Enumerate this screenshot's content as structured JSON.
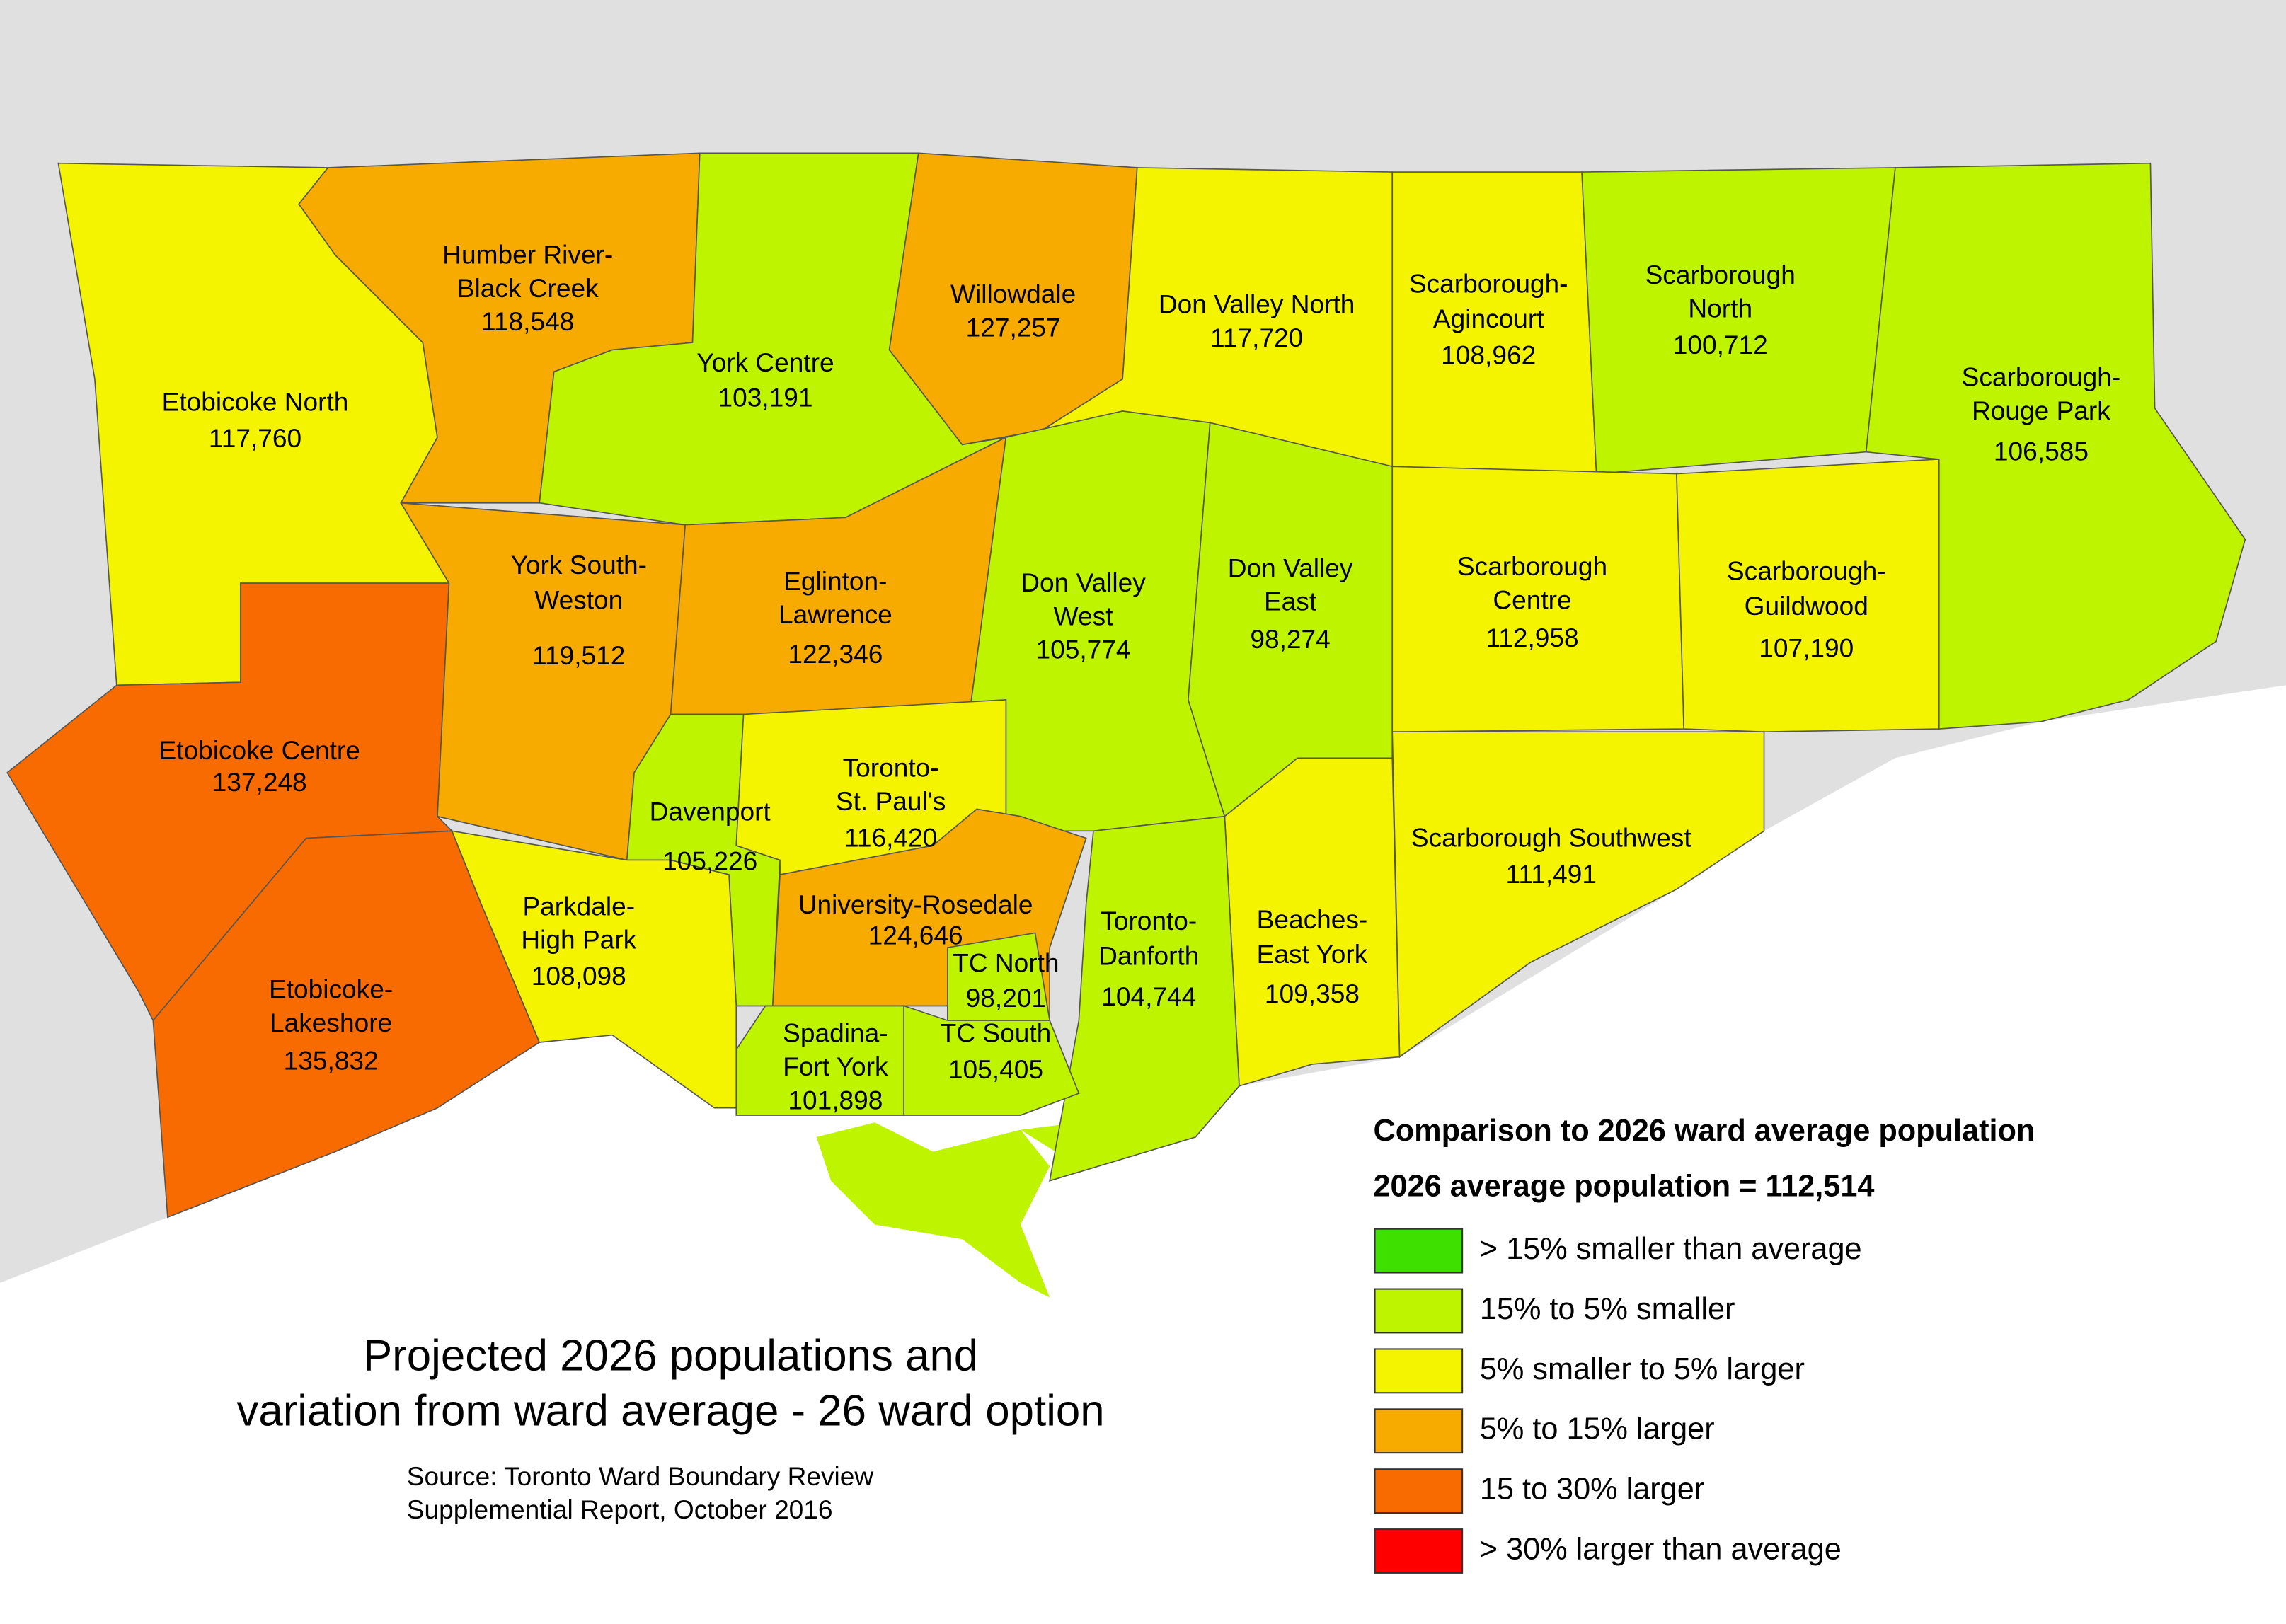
{
  "title_lines": [
    "Projected 2026 populations and",
    "variation from ward average - 26 ward option"
  ],
  "source_lines": [
    "Source: Toronto Ward Boundary Review",
    "Supplemential Report, October 2016"
  ],
  "legend": {
    "title": "Comparison to 2026 ward average population",
    "subtitle": "2026 average population = 112,514",
    "items": [
      {
        "label": "> 15% smaller than average",
        "color": "#3ee000"
      },
      {
        "label": "15% to 5% smaller",
        "color": "#bef400"
      },
      {
        "label": "5% smaller to 5% larger",
        "color": "#f4f400"
      },
      {
        "label": "5% to 15% larger",
        "color": "#f7ab00"
      },
      {
        "label": "15 to 30% larger",
        "color": "#f76b00"
      },
      {
        "label": "> 30% larger than average",
        "color": "#ff0000"
      }
    ]
  },
  "wards": [
    {
      "name_lines": [
        "Etobicoke North"
      ],
      "population": "117,760",
      "color": "#f4f400"
    },
    {
      "name_lines": [
        "Etobicoke Centre"
      ],
      "population": "137,248",
      "color": "#f76b00"
    },
    {
      "name_lines": [
        "Etobicoke-",
        "Lakeshore"
      ],
      "population": "135,832",
      "color": "#f76b00"
    },
    {
      "name_lines": [
        "Humber River-",
        "Black Creek"
      ],
      "population": "118,548",
      "color": "#f7ab00"
    },
    {
      "name_lines": [
        "York Centre"
      ],
      "population": "103,191",
      "color": "#bef400"
    },
    {
      "name_lines": [
        "Willowdale"
      ],
      "population": "127,257",
      "color": "#f7ab00"
    },
    {
      "name_lines": [
        "Don Valley North"
      ],
      "population": "117,720",
      "color": "#f4f400"
    },
    {
      "name_lines": [
        "Scarborough-",
        "Agincourt"
      ],
      "population": "108,962",
      "color": "#f4f400"
    },
    {
      "name_lines": [
        "Scarborough",
        "North"
      ],
      "population": "100,712",
      "color": "#bef400"
    },
    {
      "name_lines": [
        "Scarborough-",
        "Rouge Park"
      ],
      "population": "106,585",
      "color": "#bef400"
    },
    {
      "name_lines": [
        "York South-",
        "Weston"
      ],
      "population": "119,512",
      "color": "#f7ab00"
    },
    {
      "name_lines": [
        "Eglinton-",
        "Lawrence"
      ],
      "population": "122,346",
      "color": "#f7ab00"
    },
    {
      "name_lines": [
        "Don Valley",
        "West"
      ],
      "population": "105,774",
      "color": "#bef400"
    },
    {
      "name_lines": [
        "Don Valley",
        "East"
      ],
      "population": "98,274",
      "color": "#bef400"
    },
    {
      "name_lines": [
        "Scarborough",
        "Centre"
      ],
      "population": "112,958",
      "color": "#f4f400"
    },
    {
      "name_lines": [
        "Scarborough-",
        "Guildwood"
      ],
      "population": "107,190",
      "color": "#f4f400"
    },
    {
      "name_lines": [
        "Scarborough Southwest"
      ],
      "population": "111,491",
      "color": "#f4f400"
    },
    {
      "name_lines": [
        "Beaches-",
        "East York"
      ],
      "population": "109,358",
      "color": "#f4f400"
    },
    {
      "name_lines": [
        "Toronto-",
        "Danforth"
      ],
      "population": "104,744",
      "color": "#bef400"
    },
    {
      "name_lines": [
        "Davenport"
      ],
      "population": "105,226",
      "color": "#bef400"
    },
    {
      "name_lines": [
        "Toronto-",
        "St. Paul's"
      ],
      "population": "116,420",
      "color": "#f4f400"
    },
    {
      "name_lines": [
        "University-Rosedale"
      ],
      "population": "124,646",
      "color": "#f7ab00"
    },
    {
      "name_lines": [
        "TC North"
      ],
      "population": "98,201",
      "color": "#bef400"
    },
    {
      "name_lines": [
        "Spadina-",
        "Fort York"
      ],
      "population": "101,898",
      "color": "#bef400"
    },
    {
      "name_lines": [
        "TC South"
      ],
      "population": "105,405",
      "color": "#bef400"
    },
    {
      "name_lines": [
        "Parkdale-",
        "High Park"
      ],
      "population": "108,098",
      "color": "#f4f400"
    }
  ]
}
